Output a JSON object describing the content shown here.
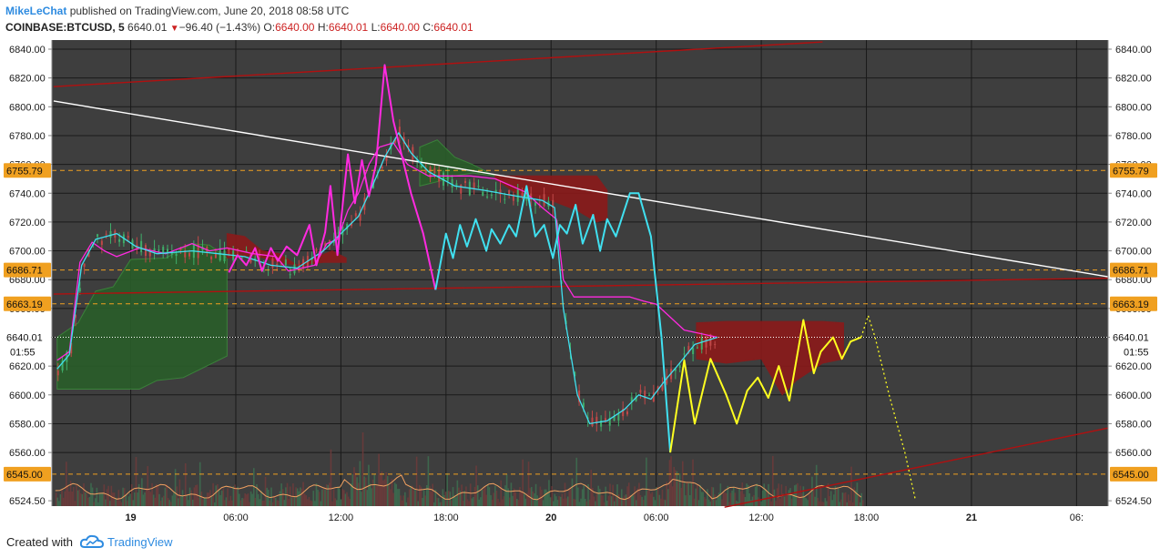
{
  "header": {
    "author": "MikeLeChat",
    "published": "published on TradingView.com, June 20, 2018 08:58 UTC",
    "symbol": "COINBASE:BTCUSD, 5",
    "last": "6640.01",
    "change_arrow": "▼",
    "change": "−96.40 (−1.43%)",
    "o_label": "O:",
    "o": "6640.00",
    "h_label": "H:",
    "h": "6640.01",
    "l_label": "L:",
    "l": "6640.00",
    "c_label": "C:",
    "c": "6640.01"
  },
  "footer": {
    "created": "Created with",
    "brand": "TradingView",
    "logo_icon": "tradingview-cloud-icon"
  },
  "colors": {
    "background": "#3e3e3e",
    "grid": "#1a1a1a",
    "axis_text": "#1a1a1a",
    "up_candle": "#2e8b57",
    "down_candle": "#b03030",
    "magenta": "#ff2ae0",
    "cyan": "#40e0f0",
    "yellow": "#ffff20",
    "trend_red": "#b01010",
    "trend_white": "#ffffff",
    "level": "#f0a020",
    "cloud_green": "#2a5e2a",
    "cloud_red": "#8b1a1a"
  },
  "chart_data": {
    "type": "line",
    "instrument": "COINBASE:BTCUSD",
    "interval": "5",
    "ylim": [
      6520,
      6850
    ],
    "y_ticks": [
      "6840.00",
      "6820.00",
      "6800.00",
      "6780.00",
      "6760.00",
      "6740.00",
      "6720.00",
      "6700.00",
      "6680.00",
      "6660.00",
      "6640.00",
      "6620.00",
      "6600.00",
      "6580.00",
      "6560.00",
      "6524.50"
    ],
    "x_ticks": [
      {
        "label": "19",
        "t": 24
      },
      {
        "label": "06:00",
        "t": 30
      },
      {
        "label": "12:00",
        "t": 36
      },
      {
        "label": "18:00",
        "t": 42
      },
      {
        "label": "20",
        "t": 48
      },
      {
        "label": "06:00",
        "t": 54
      },
      {
        "label": "12:00",
        "t": 60
      },
      {
        "label": "18:00",
        "t": 66
      },
      {
        "label": "21",
        "t": 72
      },
      {
        "label": "06:",
        "t": 78
      }
    ],
    "x_axis_bold_ticks": [
      "19",
      "20",
      "21"
    ],
    "time_unit": "hours",
    "xlim": [
      19.5,
      79.8
    ],
    "grid": true,
    "horizontal_levels": [
      {
        "price": 6755.79,
        "label": "6755.79"
      },
      {
        "price": 6686.71,
        "label": "6686.71"
      },
      {
        "price": 6663.19,
        "label": "6663.19"
      },
      {
        "price": 6545.0,
        "label": "6545.00"
      }
    ],
    "last_price": {
      "price": 6640.01,
      "label": "6640.01",
      "countdown": "01:55"
    },
    "trendlines": [
      {
        "name": "upper channel",
        "color": "trend_red",
        "points": [
          [
            19.6,
            6814
          ],
          [
            63.5,
            6845
          ]
        ]
      },
      {
        "name": "descending",
        "color": "trend_white",
        "points": [
          [
            19.6,
            6804
          ],
          [
            79.8,
            6682
          ]
        ]
      },
      {
        "name": "mid channel",
        "color": "trend_red",
        "points": [
          [
            19.6,
            6670
          ],
          [
            79.8,
            6681
          ]
        ]
      },
      {
        "name": "lower channel",
        "color": "trend_red",
        "points": [
          [
            57.9,
            6522
          ],
          [
            79.8,
            6577
          ]
        ]
      }
    ],
    "series": [
      {
        "color": "magenta",
        "points": [
          [
            19.8,
            6624
          ],
          [
            20.5,
            6630
          ],
          [
            21.1,
            6692
          ],
          [
            21.8,
            6706
          ],
          [
            22.5,
            6700
          ],
          [
            23.2,
            6696
          ],
          [
            24.5,
            6702
          ],
          [
            26,
            6698
          ],
          [
            27.5,
            6705
          ],
          [
            28.5,
            6700
          ],
          [
            29.5,
            6702
          ],
          [
            31,
            6698
          ],
          [
            32.3,
            6696
          ],
          [
            33,
            6686
          ],
          [
            34.5,
            6690
          ],
          [
            35.2,
            6705
          ],
          [
            35.8,
            6708
          ],
          [
            36.4,
            6728
          ],
          [
            37,
            6740
          ],
          [
            37.6,
            6760
          ],
          [
            38.2,
            6772
          ],
          [
            39,
            6775
          ],
          [
            39.8,
            6760
          ],
          [
            41,
            6752
          ],
          [
            42.5,
            6752
          ],
          [
            43.4,
            6752
          ],
          [
            44.8,
            6750
          ],
          [
            46.5,
            6741
          ],
          [
            47.5,
            6730
          ],
          [
            48.3,
            6722
          ],
          [
            48.7,
            6680
          ],
          [
            49.3,
            6668
          ],
          [
            50.5,
            6668
          ],
          [
            52.5,
            6668
          ],
          [
            53.3,
            6665
          ],
          [
            54,
            6663
          ],
          [
            55.6,
            6645
          ],
          [
            57.5,
            6640
          ]
        ]
      },
      {
        "color": "cyan",
        "points": [
          [
            19.8,
            6618
          ],
          [
            20.5,
            6628
          ],
          [
            21.2,
            6690
          ],
          [
            22,
            6708
          ],
          [
            23.2,
            6712
          ],
          [
            24.3,
            6703
          ],
          [
            25.5,
            6698
          ],
          [
            27.5,
            6700
          ],
          [
            29,
            6698
          ],
          [
            30.5,
            6696
          ],
          [
            32,
            6690
          ],
          [
            33.5,
            6688
          ],
          [
            35,
            6700
          ],
          [
            36,
            6712
          ],
          [
            37,
            6724
          ],
          [
            37.8,
            6745
          ],
          [
            38.5,
            6765
          ],
          [
            39.3,
            6782
          ],
          [
            40,
            6768
          ],
          [
            41,
            6755
          ],
          [
            42.5,
            6745
          ],
          [
            44.2,
            6742
          ],
          [
            46,
            6738
          ],
          [
            47.5,
            6735
          ],
          [
            48.2,
            6730
          ],
          [
            48.7,
            6660
          ],
          [
            49.5,
            6600
          ],
          [
            50.2,
            6580
          ],
          [
            51.2,
            6582
          ],
          [
            52.2,
            6590
          ],
          [
            53,
            6600
          ],
          [
            53.7,
            6597
          ],
          [
            54.5,
            6610
          ],
          [
            55.2,
            6620
          ],
          [
            56.2,
            6635
          ],
          [
            57.5,
            6640
          ]
        ]
      },
      {
        "color": "magenta",
        "width": 2,
        "points": [
          [
            29.6,
            6685
          ],
          [
            30.1,
            6697
          ],
          [
            30.6,
            6690
          ],
          [
            31.1,
            6702
          ],
          [
            31.5,
            6686
          ],
          [
            32,
            6702
          ],
          [
            32.4,
            6693
          ],
          [
            32.9,
            6703
          ],
          [
            33.5,
            6697
          ],
          [
            34.2,
            6718
          ],
          [
            34.6,
            6690
          ],
          [
            35.1,
            6713
          ],
          [
            35.4,
            6745
          ],
          [
            35.8,
            6697
          ],
          [
            36.4,
            6767
          ],
          [
            36.8,
            6733
          ],
          [
            37.2,
            6763
          ],
          [
            37.6,
            6738
          ],
          [
            38,
            6760
          ],
          [
            38.5,
            6829
          ],
          [
            39,
            6790
          ],
          [
            39.5,
            6765
          ],
          [
            40,
            6740
          ],
          [
            40.7,
            6712
          ],
          [
            41.4,
            6673
          ]
        ]
      },
      {
        "color": "cyan",
        "width": 2,
        "points": [
          [
            41.4,
            6673
          ],
          [
            42,
            6712
          ],
          [
            42.4,
            6695
          ],
          [
            42.8,
            6718
          ],
          [
            43.2,
            6703
          ],
          [
            43.7,
            6722
          ],
          [
            44.3,
            6700
          ],
          [
            44.6,
            6715
          ],
          [
            45.1,
            6705
          ],
          [
            45.6,
            6718
          ],
          [
            46,
            6710
          ],
          [
            46.6,
            6745
          ],
          [
            47.1,
            6710
          ],
          [
            47.6,
            6718
          ],
          [
            48.1,
            6695
          ],
          [
            48.5,
            6718
          ],
          [
            48.9,
            6712
          ],
          [
            49.4,
            6732
          ],
          [
            49.8,
            6705
          ],
          [
            50.4,
            6725
          ],
          [
            50.8,
            6700
          ],
          [
            51.2,
            6722
          ],
          [
            51.7,
            6710
          ],
          [
            52.5,
            6740
          ],
          [
            53,
            6740
          ],
          [
            53.7,
            6710
          ],
          [
            54.3,
            6640
          ],
          [
            54.8,
            6560
          ]
        ]
      },
      {
        "color": "yellow",
        "width": 2,
        "points": [
          [
            54.8,
            6560
          ],
          [
            55.6,
            6624
          ],
          [
            56.2,
            6580
          ],
          [
            57.1,
            6625
          ],
          [
            58,
            6600
          ],
          [
            58.6,
            6580
          ],
          [
            59.2,
            6603
          ],
          [
            59.8,
            6612
          ],
          [
            60.4,
            6598
          ],
          [
            61,
            6620
          ],
          [
            61.6,
            6596
          ],
          [
            62.4,
            6652
          ],
          [
            63,
            6615
          ],
          [
            63.4,
            6630
          ],
          [
            64.1,
            6640
          ],
          [
            64.6,
            6625
          ],
          [
            65.1,
            6637
          ],
          [
            65.7,
            6640
          ]
        ]
      },
      {
        "color": "yellow",
        "dashed": true,
        "points": [
          [
            65.7,
            6640
          ],
          [
            66.1,
            6655
          ],
          [
            66.5,
            6640
          ],
          [
            67.3,
            6600
          ],
          [
            68.2,
            6560
          ],
          [
            68.8,
            6527
          ]
        ]
      }
    ],
    "ichimoku_clouds": [
      {
        "color": "cloud_green",
        "points_top": [
          [
            19.8,
            6640
          ],
          [
            21,
            6650
          ],
          [
            22,
            6672
          ],
          [
            23,
            6675
          ],
          [
            24,
            6694
          ],
          [
            26,
            6695
          ],
          [
            27.5,
            6705
          ],
          [
            28.5,
            6704
          ],
          [
            29.5,
            6695
          ]
        ],
        "points_bottom": [
          [
            19.8,
            6604
          ],
          [
            24.5,
            6604
          ],
          [
            25.5,
            6610
          ],
          [
            27,
            6612
          ],
          [
            28,
            6618
          ],
          [
            29.5,
            6627
          ]
        ]
      },
      {
        "color": "cloud_red",
        "points_top": [
          [
            29.5,
            6712
          ],
          [
            30.5,
            6710
          ],
          [
            31.5,
            6700
          ],
          [
            32.5,
            6698
          ],
          [
            33.5,
            6690
          ],
          [
            34.5,
            6695
          ],
          [
            35.5,
            6700
          ],
          [
            36.3,
            6695
          ]
        ],
        "points_bottom": [
          [
            29.5,
            6695
          ],
          [
            31,
            6697
          ],
          [
            32.5,
            6692
          ],
          [
            33.5,
            6690
          ],
          [
            35,
            6692
          ],
          [
            36.3,
            6692
          ]
        ]
      },
      {
        "color": "cloud_green",
        "points_top": [
          [
            40.5,
            6772
          ],
          [
            41.5,
            6777
          ],
          [
            42.5,
            6765
          ],
          [
            43.5,
            6760
          ],
          [
            44.8,
            6752
          ]
        ],
        "points_bottom": [
          [
            40.5,
            6745
          ],
          [
            41.5,
            6748
          ],
          [
            42.5,
            6752
          ],
          [
            43.5,
            6754
          ],
          [
            44.8,
            6752
          ]
        ]
      },
      {
        "color": "cloud_red",
        "points_top": [
          [
            44.8,
            6752
          ],
          [
            46,
            6752
          ],
          [
            48,
            6752
          ],
          [
            49.5,
            6752
          ],
          [
            50.6,
            6752
          ],
          [
            51.2,
            6742
          ]
        ],
        "points_bottom": [
          [
            44.8,
            6750
          ],
          [
            46,
            6740
          ],
          [
            48,
            6735
          ],
          [
            49.5,
            6728
          ],
          [
            50.6,
            6720
          ],
          [
            51.2,
            6722
          ]
        ]
      },
      {
        "color": "cloud_red",
        "points_top": [
          [
            56.3,
            6650
          ],
          [
            58,
            6651
          ],
          [
            60,
            6651
          ],
          [
            62,
            6651
          ],
          [
            63.5,
            6651
          ],
          [
            64.7,
            6650
          ]
        ],
        "points_bottom": [
          [
            56.3,
            6625
          ],
          [
            58,
            6622
          ],
          [
            60,
            6625
          ],
          [
            61.2,
            6600
          ],
          [
            62,
            6610
          ],
          [
            63.5,
            6622
          ],
          [
            64.7,
            6625
          ]
        ]
      }
    ],
    "candles_hint": "5-minute OHLC candles drawn from the series path; volume bars along the bottom with an orange volume moving-average"
  }
}
